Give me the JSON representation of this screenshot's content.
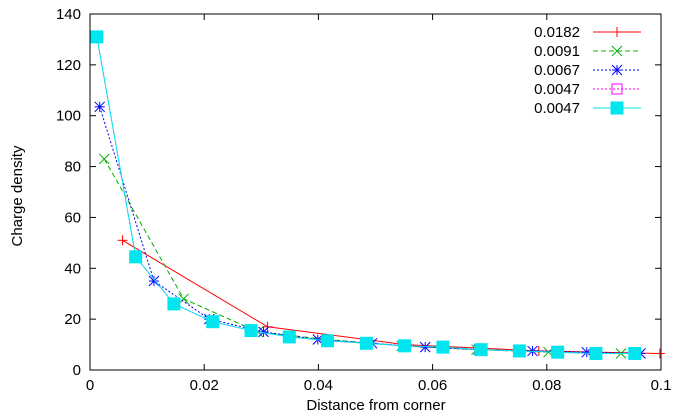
{
  "chart_data": {
    "type": "line",
    "xlabel": "Distance from corner",
    "ylabel": "Charge density",
    "xlim": [
      0,
      0.1
    ],
    "ylim": [
      0,
      140
    ],
    "x_ticks": [
      0,
      0.02,
      0.04,
      0.06,
      0.08,
      0.1
    ],
    "y_ticks": [
      0,
      20,
      40,
      60,
      80,
      100,
      120,
      140
    ],
    "x_tick_labels": [
      "0",
      "0.02",
      "0.04",
      "0.06",
      "0.08",
      "0.1"
    ],
    "y_tick_labels": [
      "0",
      "20",
      "40",
      "60",
      "80",
      "100",
      "120",
      "140"
    ],
    "grid": false,
    "legend_position": "top-right",
    "series": [
      {
        "name": "0.0182",
        "color": "#ff0000",
        "dash": "solid",
        "marker": "plus",
        "x": [
          0.0057,
          0.0311,
          0.0551,
          0.0786,
          0.0998
        ],
        "y": [
          51,
          17,
          10,
          7.5,
          6.5
        ]
      },
      {
        "name": "0.0091",
        "color": "#00b000",
        "dash": "dashed",
        "marker": "cross",
        "x": [
          0.0025,
          0.0164,
          0.0294,
          0.0415,
          0.0546,
          0.0677,
          0.0803,
          0.093
        ],
        "y": [
          83,
          28,
          15,
          12,
          9.5,
          8,
          7,
          6.5
        ]
      },
      {
        "name": "0.0067",
        "color": "#0000ff",
        "dash": "dotted",
        "marker": "star",
        "x": [
          0.0017,
          0.0112,
          0.0209,
          0.0304,
          0.0399,
          0.0494,
          0.0587,
          0.0681,
          0.0775,
          0.087,
          0.0964
        ],
        "y": [
          103.5,
          35,
          20,
          15,
          12,
          10.5,
          9,
          8,
          7.5,
          7,
          6.5
        ]
      },
      {
        "name": "0.0047",
        "color": "#ff00ff",
        "dash": "dotted",
        "marker": "open-square",
        "x": [
          0.0012,
          0.008,
          0.0147,
          0.0215,
          0.0282,
          0.0349,
          0.0416,
          0.0484,
          0.0551,
          0.0618,
          0.0685,
          0.0752,
          0.0819,
          0.0886,
          0.0954
        ],
        "y": [
          131,
          44.5,
          26,
          19,
          15.5,
          13,
          11.5,
          10.5,
          9.5,
          9,
          8,
          7.5,
          7,
          6.5,
          6.5
        ]
      },
      {
        "name": "0.0047",
        "color": "#00e5ee",
        "dash": "solid",
        "marker": "filled-square",
        "x": [
          0.0012,
          0.008,
          0.0147,
          0.0215,
          0.0282,
          0.0349,
          0.0416,
          0.0484,
          0.0551,
          0.0618,
          0.0685,
          0.0752,
          0.0819,
          0.0886,
          0.0954
        ],
        "y": [
          131,
          44.5,
          26,
          19,
          15.5,
          13,
          11.5,
          10.5,
          9.5,
          9,
          8,
          7.5,
          7,
          6.5,
          6.5
        ]
      }
    ]
  }
}
